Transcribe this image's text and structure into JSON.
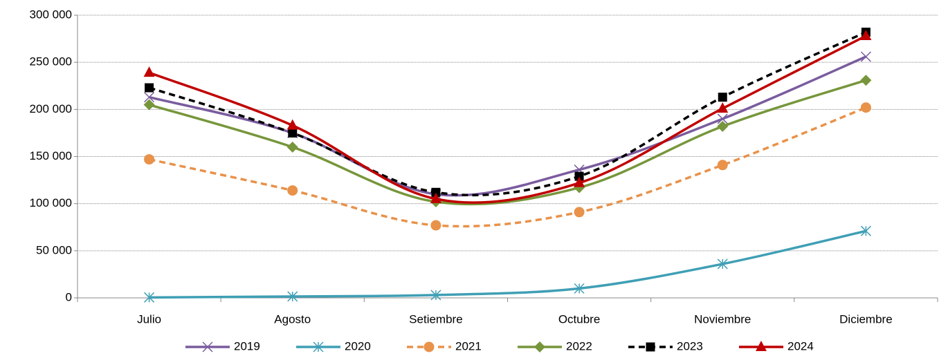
{
  "chart_data": {
    "type": "line",
    "categories": [
      "Julio",
      "Agosto",
      "Setiembre",
      "Octubre",
      "Noviembre",
      "Diciembre"
    ],
    "series": [
      {
        "name": "2019",
        "color": "#7a5c9e",
        "marker": "x",
        "dashed": false,
        "values": [
          213000,
          175000,
          110000,
          136000,
          190000,
          256000
        ]
      },
      {
        "name": "2020",
        "color": "#3f9fb5",
        "marker": "star",
        "dashed": false,
        "values": [
          500,
          1500,
          3000,
          10000,
          36000,
          71000
        ]
      },
      {
        "name": "2021",
        "color": "#e8924a",
        "marker": "circle",
        "dashed": true,
        "values": [
          147000,
          114000,
          77000,
          91000,
          141000,
          202000
        ]
      },
      {
        "name": "2022",
        "color": "#77963b",
        "marker": "diamond",
        "dashed": false,
        "values": [
          205000,
          160000,
          102000,
          117000,
          182000,
          231000
        ]
      },
      {
        "name": "2023",
        "color": "#000000",
        "marker": "square",
        "dashed": true,
        "values": [
          223000,
          175000,
          112000,
          129000,
          213000,
          282000
        ]
      },
      {
        "name": "2024",
        "color": "#c00000",
        "marker": "triangle",
        "dashed": false,
        "values": [
          239000,
          183000,
          105000,
          122000,
          201000,
          278000
        ]
      }
    ],
    "ylim": [
      0,
      300000
    ],
    "yticks": [
      {
        "value": 0,
        "label": "0"
      },
      {
        "value": 50000,
        "label": "50 000"
      },
      {
        "value": 100000,
        "label": "100 000"
      },
      {
        "value": 150000,
        "label": "150 000"
      },
      {
        "value": 200000,
        "label": "200 000"
      },
      {
        "value": 250000,
        "label": "250 000"
      },
      {
        "value": 300000,
        "label": "300 000"
      }
    ],
    "grid": true,
    "legend": "bottom"
  }
}
